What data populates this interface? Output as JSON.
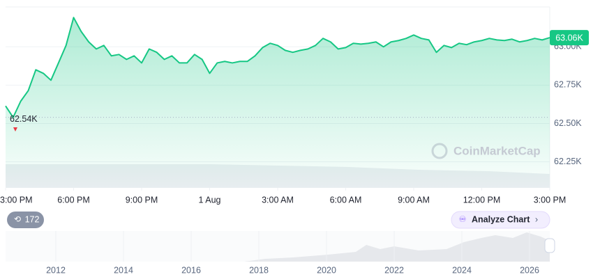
{
  "chart_data": {
    "type": "line",
    "series": [
      {
        "color": "#16c784",
        "values": [
          62614,
          62540,
          62645,
          62714,
          62850,
          62827,
          62782,
          62895,
          63009,
          63191,
          63100,
          63032,
          62986,
          63009,
          62941,
          62950,
          62918,
          62941,
          62895,
          62986,
          62964,
          62918,
          62941,
          62895,
          62895,
          62950,
          62918,
          62827,
          62895,
          62905,
          62895,
          62905,
          62905,
          62941,
          62995,
          63023,
          63009,
          62977,
          62964,
          62977,
          62986,
          63009,
          63055,
          63032,
          62986,
          62995,
          63023,
          63018,
          63023,
          63032,
          63000,
          63032,
          63041,
          63055,
          63077,
          63055,
          63045,
          62964,
          63009,
          62995,
          63023,
          63014,
          63032,
          63041,
          63055,
          63045,
          63041,
          63050,
          63032,
          63041,
          63055,
          63045,
          63060
        ]
      }
    ],
    "xlim": [
      0,
      72
    ],
    "xticks": [
      {
        "value": 0,
        "label": "3:00 PM"
      },
      {
        "value": 9,
        "label": "6:00 PM"
      },
      {
        "value": 18,
        "label": "9:00 PM"
      },
      {
        "value": 27,
        "label": "1 Aug"
      },
      {
        "value": 36,
        "label": "3:00 AM"
      },
      {
        "value": 45,
        "label": "6:00 AM"
      },
      {
        "value": 54,
        "label": "9:00 AM"
      },
      {
        "value": 63,
        "label": "12:00 PM"
      },
      {
        "value": 72,
        "label": "3:00 PM"
      }
    ],
    "ylim": [
      62080,
      63260
    ],
    "yticks": [
      {
        "value": 62250,
        "label": "62.25K"
      },
      {
        "value": 62500,
        "label": "62.50K"
      },
      {
        "value": 62750,
        "label": "62.75K"
      },
      {
        "value": 63000,
        "label": "63.00K"
      }
    ],
    "grid": true,
    "low_line": {
      "value": 62540,
      "label": "62.54K"
    },
    "price_tag": {
      "value": 63060,
      "label": "63.06K"
    },
    "watermark": "CoinMarketCap"
  },
  "controls": {
    "badge": "172",
    "analyze": "Analyze Chart"
  },
  "navigator": {
    "years": [
      "2012",
      "2014",
      "2016",
      "2018",
      "2020",
      "2022",
      "2024",
      "2026"
    ]
  }
}
